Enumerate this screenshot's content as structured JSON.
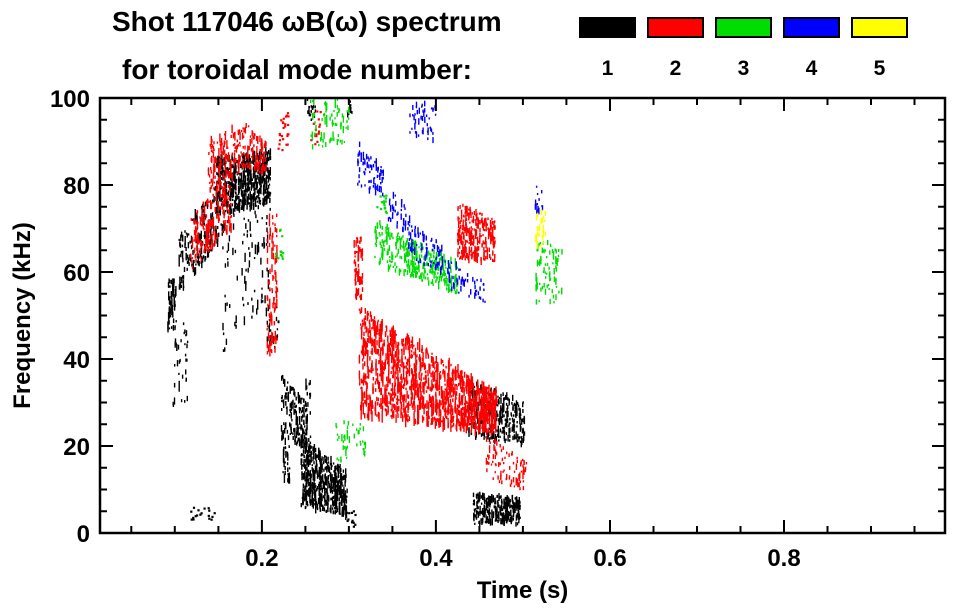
{
  "chart_data": {
    "type": "scatter",
    "title": "Shot 117046 ωB(ω) spectrum",
    "subtitle": "for toroidal mode number:",
    "xlabel": "Time (s)",
    "ylabel": "Frequency (kHz)",
    "xlim": [
      0.014,
      0.985
    ],
    "ylim": [
      0,
      100
    ],
    "x_ticks": [
      {
        "v": 0.2,
        "label": "0.2"
      },
      {
        "v": 0.4,
        "label": "0.4"
      },
      {
        "v": 0.6,
        "label": "0.6"
      },
      {
        "v": 0.8,
        "label": "0.8"
      }
    ],
    "x_minor_step": 0.05,
    "y_ticks": [
      {
        "v": 0,
        "label": "0"
      },
      {
        "v": 20,
        "label": "20"
      },
      {
        "v": 40,
        "label": "40"
      },
      {
        "v": 60,
        "label": "60"
      },
      {
        "v": 80,
        "label": "80"
      },
      {
        "v": 100,
        "label": "100"
      }
    ],
    "y_minor_step": 5,
    "grid": false,
    "legend_position": "top-right",
    "legend": [
      {
        "label": "1",
        "color": "#000000"
      },
      {
        "label": "2",
        "color": "#ff0000"
      },
      {
        "label": "3",
        "color": "#00dd00"
      },
      {
        "label": "4",
        "color": "#0000ff"
      },
      {
        "label": "5",
        "color": "#ffff00"
      }
    ],
    "series": [
      {
        "name": "n1",
        "color": "#000000",
        "clusters": [
          {
            "t": [
              0.092,
              0.102
            ],
            "f0": [
              47,
              58
            ],
            "f1": [
              47,
              58
            ],
            "n": 60,
            "style": "v",
            "h": 10
          },
          {
            "t": [
              0.098,
              0.115
            ],
            "f0": [
              27,
              47
            ],
            "f1": [
              30,
              50
            ],
            "n": 35,
            "style": "v",
            "h": 9
          },
          {
            "t": [
              0.105,
              0.155
            ],
            "f0": [
              55,
              68
            ],
            "f1": [
              68,
              82
            ],
            "n": 170,
            "style": "v",
            "h": 12
          },
          {
            "t": [
              0.148,
              0.21
            ],
            "f0": [
              73,
              86
            ],
            "f1": [
              76,
              88
            ],
            "n": 600,
            "style": "v",
            "h": 10
          },
          {
            "t": [
              0.155,
              0.21
            ],
            "f0": [
              40,
              73
            ],
            "f1": [
              55,
              76
            ],
            "n": 90,
            "style": "v",
            "h": 12
          },
          {
            "t": [
              0.205,
              0.22
            ],
            "f0": [
              42,
              52
            ],
            "f1": [
              42,
              52
            ],
            "n": 25,
            "style": "v",
            "h": 8
          },
          {
            "t": [
              0.222,
              0.232
            ],
            "f0": [
              12,
              36
            ],
            "f1": [
              12,
              36
            ],
            "n": 60,
            "style": "v",
            "h": 12
          },
          {
            "t": [
              0.232,
              0.252
            ],
            "f0": [
              22,
              34
            ],
            "f1": [
              18,
              30
            ],
            "n": 120,
            "style": "v",
            "h": 9
          },
          {
            "t": [
              0.25,
              0.256
            ],
            "f0": [
              8,
              35
            ],
            "f1": [
              8,
              35
            ],
            "n": 40,
            "style": "v",
            "h": 12
          },
          {
            "t": [
              0.245,
              0.298
            ],
            "f0": [
              6,
              22
            ],
            "f1": [
              4,
              14
            ],
            "n": 500,
            "style": "v",
            "h": 10
          },
          {
            "t": [
              0.438,
              0.502
            ],
            "f0": [
              22,
              35
            ],
            "f1": [
              20,
              30
            ],
            "n": 350,
            "style": "v",
            "h": 9
          },
          {
            "t": [
              0.443,
              0.497
            ],
            "f0": [
              2,
              9
            ],
            "f1": [
              2,
              8
            ],
            "n": 300,
            "style": "v",
            "h": 8
          },
          {
            "t": [
              0.118,
              0.152
            ],
            "f0": [
              3,
              6
            ],
            "f1": [
              3,
              6
            ],
            "n": 18,
            "style": "p"
          },
          {
            "t": [
              0.252,
              0.262
            ],
            "f0": [
              95,
              100
            ],
            "f1": [
              95,
              100
            ],
            "n": 20,
            "style": "v",
            "h": 8
          },
          {
            "t": [
              0.296,
              0.308
            ],
            "f0": [
              1,
              5
            ],
            "f1": [
              1,
              5
            ],
            "n": 12,
            "style": "p"
          },
          {
            "t": [
              0.296,
              0.304
            ],
            "f0": [
              96,
              100
            ],
            "f1": [
              96,
              100
            ],
            "n": 10,
            "style": "v",
            "h": 7
          }
        ]
      },
      {
        "name": "n2",
        "color": "#ff0000",
        "clusters": [
          {
            "t": [
              0.118,
              0.165
            ],
            "f0": [
              60,
              72
            ],
            "f1": [
              70,
              84
            ],
            "n": 180,
            "style": "v",
            "h": 12
          },
          {
            "t": [
              0.138,
              0.185
            ],
            "f0": [
              78,
              90
            ],
            "f1": [
              84,
              95
            ],
            "n": 160,
            "style": "v",
            "h": 10
          },
          {
            "t": [
              0.185,
              0.205
            ],
            "f0": [
              84,
              93
            ],
            "f1": [
              82,
              90
            ],
            "n": 80,
            "style": "v",
            "h": 9
          },
          {
            "t": [
              0.206,
              0.218
            ],
            "f0": [
              40,
              72
            ],
            "f1": [
              42,
              74
            ],
            "n": 90,
            "style": "v",
            "h": 13
          },
          {
            "t": [
              0.306,
              0.316
            ],
            "f0": [
              54,
              68
            ],
            "f1": [
              54,
              68
            ],
            "n": 70,
            "style": "v",
            "h": 12
          },
          {
            "t": [
              0.312,
              0.47
            ],
            "f0": [
              27,
              52
            ],
            "f1": [
              23,
              32
            ],
            "n": 1200,
            "style": "v",
            "h": 16
          },
          {
            "t": [
              0.425,
              0.468
            ],
            "f0": [
              63,
              76
            ],
            "f1": [
              62,
              72
            ],
            "n": 280,
            "style": "v",
            "h": 9
          },
          {
            "t": [
              0.458,
              0.505
            ],
            "f0": [
              13,
              23
            ],
            "f1": [
              9,
              16
            ],
            "n": 90,
            "style": "v",
            "h": 8
          },
          {
            "t": [
              0.218,
              0.232
            ],
            "f0": [
              87,
              97
            ],
            "f1": [
              87,
              97
            ],
            "n": 25,
            "style": "p"
          },
          {
            "t": [
              0.255,
              0.268
            ],
            "f0": [
              89,
              98
            ],
            "f1": [
              89,
              98
            ],
            "n": 15,
            "style": "p"
          }
        ]
      },
      {
        "name": "n3",
        "color": "#00dd00",
        "clusters": [
          {
            "t": [
              0.33,
              0.425
            ],
            "f0": [
              62,
              72
            ],
            "f1": [
              55,
              62
            ],
            "n": 320,
            "style": "v",
            "h": 9
          },
          {
            "t": [
              0.255,
              0.3
            ],
            "f0": [
              88,
              100
            ],
            "f1": [
              90,
              100
            ],
            "n": 70,
            "style": "v",
            "h": 9
          },
          {
            "t": [
              0.515,
              0.545
            ],
            "f0": [
              53,
              68
            ],
            "f1": [
              53,
              66
            ],
            "n": 70,
            "style": "v",
            "h": 9
          },
          {
            "t": [
              0.285,
              0.32
            ],
            "f0": [
              16,
              26
            ],
            "f1": [
              18,
              25
            ],
            "n": 45,
            "style": "v",
            "h": 8
          },
          {
            "t": [
              0.332,
              0.345
            ],
            "f0": [
              73,
              78
            ],
            "f1": [
              73,
              78
            ],
            "n": 15,
            "style": "p"
          },
          {
            "t": [
              0.21,
              0.225
            ],
            "f0": [
              63,
              70
            ],
            "f1": [
              63,
              70
            ],
            "n": 12,
            "style": "p"
          }
        ]
      },
      {
        "name": "n4",
        "color": "#0000ff",
        "clusters": [
          {
            "t": [
              0.31,
              0.34
            ],
            "f0": [
              80,
              90
            ],
            "f1": [
              77,
              84
            ],
            "n": 70,
            "style": "v",
            "h": 8
          },
          {
            "t": [
              0.345,
              0.37
            ],
            "f0": [
              72,
              79
            ],
            "f1": [
              68,
              75
            ],
            "n": 35,
            "style": "v",
            "h": 8
          },
          {
            "t": [
              0.368,
              0.408
            ],
            "f0": [
              63,
              72
            ],
            "f1": [
              60,
              66
            ],
            "n": 80,
            "style": "v",
            "h": 8
          },
          {
            "t": [
              0.41,
              0.458
            ],
            "f0": [
              56,
              63
            ],
            "f1": [
              53,
              58
            ],
            "n": 50,
            "style": "v",
            "h": 7
          },
          {
            "t": [
              0.37,
              0.4
            ],
            "f0": [
              92,
              100
            ],
            "f1": [
              90,
              98
            ],
            "n": 45,
            "style": "v",
            "h": 8
          },
          {
            "t": [
              0.513,
              0.523
            ],
            "f0": [
              73,
              80
            ],
            "f1": [
              73,
              80
            ],
            "n": 15,
            "style": "v",
            "h": 7
          }
        ]
      },
      {
        "name": "n5",
        "color": "#ffff00",
        "clusters": [
          {
            "t": [
              0.514,
              0.526
            ],
            "f0": [
              66,
              74
            ],
            "f1": [
              66,
              74
            ],
            "n": 30,
            "style": "v",
            "h": 8
          }
        ]
      }
    ]
  }
}
